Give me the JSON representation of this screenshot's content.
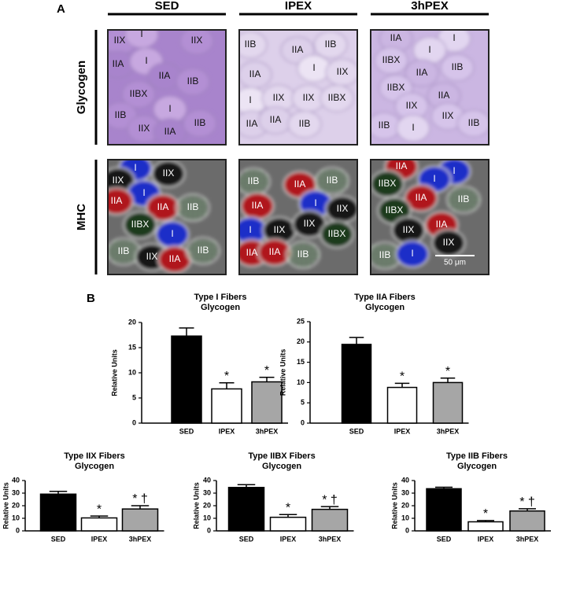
{
  "panel_a": {
    "label": "A",
    "columns": [
      "SED",
      "IPEX",
      "3hPEX"
    ],
    "rows": [
      "Glycogen",
      "MHC"
    ],
    "images": [
      {
        "row": "Glycogen",
        "column": "SED",
        "labels": [
          "IIX",
          "I",
          "IIX",
          "IIA",
          "I",
          "IIA",
          "IIB",
          "IIBX",
          "I",
          "IIB",
          "IIX",
          "IIA",
          "IIB"
        ]
      },
      {
        "row": "Glycogen",
        "column": "IPEX",
        "labels": [
          "IIB",
          "IIA",
          "IIB",
          "IIA",
          "I",
          "IIX",
          "I",
          "IIX",
          "IIX",
          "IIBX",
          "IIA",
          "IIA",
          "IIB"
        ]
      },
      {
        "row": "Glycogen",
        "column": "3hPEX",
        "labels": [
          "IIA",
          "I",
          "IIBX",
          "I",
          "IIA",
          "IIB",
          "IIBX",
          "IIA",
          "IIX",
          "IIX",
          "IIB",
          "I",
          "IIB"
        ]
      },
      {
        "row": "MHC",
        "column": "SED",
        "labels": [
          "I",
          "IIX",
          "IIX",
          "I",
          "IIA",
          "IIA",
          "IIB",
          "IIBX",
          "I",
          "IIB",
          "IIX",
          "IIA",
          "IIB"
        ]
      },
      {
        "row": "MHC",
        "column": "IPEX",
        "labels": [
          "IIB",
          "IIA",
          "IIB",
          "IIA",
          "I",
          "IIX",
          "I",
          "IIX",
          "IIX",
          "IIBX",
          "IIA",
          "IIA",
          "IIB"
        ]
      },
      {
        "row": "MHC",
        "column": "3hPEX",
        "labels": [
          "IIA",
          "I",
          "IIBX",
          "I",
          "IIA",
          "IIB",
          "IIBX",
          "IIA",
          "IIX",
          "IIX",
          "IIB",
          "I"
        ],
        "scale_bar": "50 μm"
      }
    ]
  },
  "panel_b": {
    "label": "B"
  },
  "chart_data": [
    {
      "type": "bar",
      "title": "Type I Fibers",
      "subtitle": "Glycogen",
      "ylabel": "Relative Units",
      "categories": [
        "SED",
        "IPEX",
        "3hPEX"
      ],
      "values": [
        17.3,
        6.8,
        8.2
      ],
      "errors": [
        1.6,
        1.2,
        0.9
      ],
      "colors": [
        "#000000",
        "#ffffff",
        "#a6a6a6"
      ],
      "ylim": [
        0,
        20
      ],
      "yticks": [
        0,
        5,
        10,
        15,
        20
      ],
      "annotations": [
        {
          "x": "IPEX",
          "text": "*"
        },
        {
          "x": "3hPEX",
          "text": "*"
        }
      ]
    },
    {
      "type": "bar",
      "title": "Type IIA Fibers",
      "subtitle": "Glycogen",
      "ylabel": "Relative Units",
      "categories": [
        "SED",
        "IPEX",
        "3hPEX"
      ],
      "values": [
        19.4,
        8.8,
        10.0
      ],
      "errors": [
        1.7,
        1.0,
        1.1
      ],
      "colors": [
        "#000000",
        "#ffffff",
        "#a6a6a6"
      ],
      "ylim": [
        0,
        25
      ],
      "yticks": [
        0,
        5,
        10,
        15,
        20,
        25
      ],
      "annotations": [
        {
          "x": "IPEX",
          "text": "*"
        },
        {
          "x": "3hPEX",
          "text": "*"
        }
      ]
    },
    {
      "type": "bar",
      "title": "Type IIX Fibers",
      "subtitle": "Glycogen",
      "ylabel": "Relative Units",
      "categories": [
        "SED",
        "IPEX",
        "3hPEX"
      ],
      "values": [
        29.2,
        10.3,
        17.4
      ],
      "errors": [
        2.2,
        1.5,
        2.6
      ],
      "colors": [
        "#000000",
        "#ffffff",
        "#a6a6a6"
      ],
      "ylim": [
        0,
        40
      ],
      "yticks": [
        0,
        10,
        20,
        30,
        40
      ],
      "annotations": [
        {
          "x": "IPEX",
          "text": "*"
        },
        {
          "x": "3hPEX",
          "text": "* †"
        }
      ]
    },
    {
      "type": "bar",
      "title": "Type IIBX Fibers",
      "subtitle": "Glycogen",
      "ylabel": "Relative Units",
      "categories": [
        "SED",
        "IPEX",
        "3hPEX"
      ],
      "values": [
        34.5,
        10.8,
        17.1
      ],
      "errors": [
        2.2,
        2.2,
        2.2
      ],
      "colors": [
        "#000000",
        "#ffffff",
        "#a6a6a6"
      ],
      "ylim": [
        0,
        40
      ],
      "yticks": [
        0,
        10,
        20,
        30,
        40
      ],
      "annotations": [
        {
          "x": "IPEX",
          "text": "*"
        },
        {
          "x": "3hPEX",
          "text": "* †"
        }
      ]
    },
    {
      "type": "bar",
      "title": "Type IIB Fibers",
      "subtitle": "Glycogen",
      "ylabel": "Relative Units",
      "categories": [
        "SED",
        "IPEX",
        "3hPEX"
      ],
      "values": [
        33.5,
        7.2,
        15.8
      ],
      "errors": [
        1.2,
        1.0,
        1.8
      ],
      "colors": [
        "#000000",
        "#ffffff",
        "#a6a6a6"
      ],
      "ylim": [
        0,
        40
      ],
      "yticks": [
        0,
        10,
        20,
        30,
        40
      ],
      "annotations": [
        {
          "x": "IPEX",
          "text": "*"
        },
        {
          "x": "3hPEX",
          "text": "* †"
        }
      ]
    }
  ]
}
